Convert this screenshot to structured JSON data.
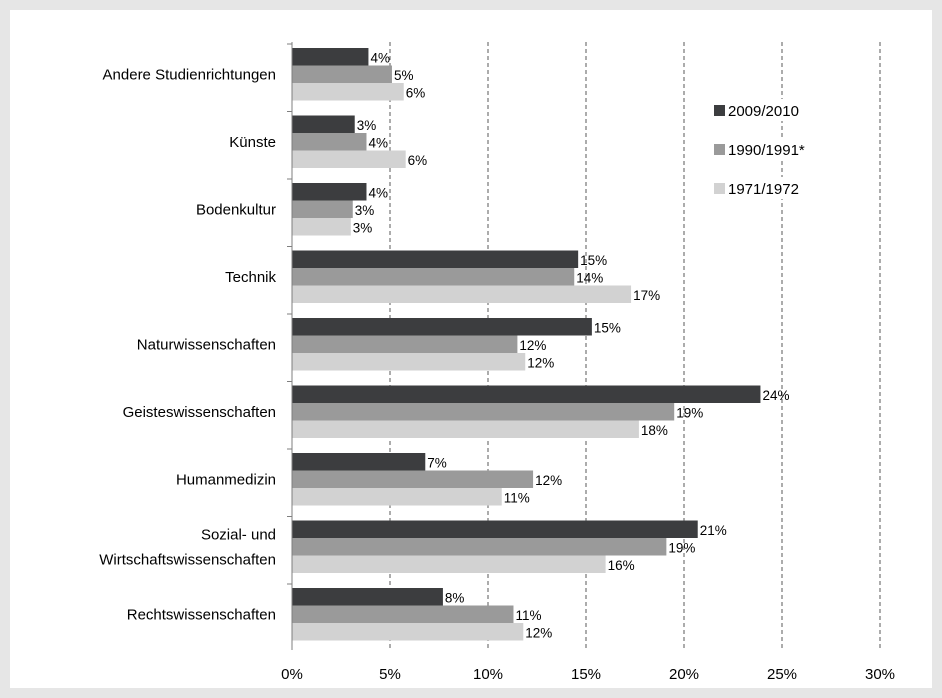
{
  "chart_data": {
    "type": "bar",
    "orientation": "horizontal",
    "categories": [
      "Andere Studienrichtungen",
      "Künste",
      "Bodenkultur",
      "Technik",
      "Naturwissenschaften",
      "Geisteswissenschaften",
      "Humanmedizin",
      "Sozial- und Wirtschaftswissenschaften",
      "Rechtswissenschaften"
    ],
    "category_lines": [
      [
        "Andere Studienrichtungen"
      ],
      [
        "Künste"
      ],
      [
        "Bodenkultur"
      ],
      [
        "Technik"
      ],
      [
        "Naturwissenschaften"
      ],
      [
        "Geisteswissenschaften"
      ],
      [
        "Humanmedizin"
      ],
      [
        "Sozial- und",
        "Wirtschaftswissenschaften"
      ],
      [
        "Rechtswissenschaften"
      ]
    ],
    "series": [
      {
        "name": "2009/2010",
        "color": "#3c3d3f",
        "values": [
          3.9,
          3.2,
          3.8,
          14.6,
          15.3,
          23.9,
          6.8,
          20.7,
          7.7
        ],
        "labels": [
          "4%",
          "3%",
          "4%",
          "15%",
          "15%",
          "24%",
          "7%",
          "21%",
          "8%"
        ]
      },
      {
        "name": "1990/1991*",
        "color": "#9a9a9a",
        "values": [
          5.1,
          3.8,
          3.1,
          14.4,
          11.5,
          19.5,
          12.3,
          19.1,
          11.3
        ],
        "labels": [
          "5%",
          "4%",
          "3%",
          "14%",
          "12%",
          "19%",
          "12%",
          "19%",
          "11%"
        ]
      },
      {
        "name": "1971/1972",
        "color": "#d2d2d2",
        "values": [
          5.7,
          5.8,
          3.0,
          17.3,
          11.9,
          17.7,
          10.7,
          16.0,
          11.8
        ],
        "labels": [
          "6%",
          "6%",
          "3%",
          "17%",
          "12%",
          "18%",
          "11%",
          "16%",
          "12%"
        ]
      }
    ],
    "xlim": [
      0,
      30
    ],
    "xticks": [
      0,
      5,
      10,
      15,
      20,
      25,
      30
    ],
    "xtick_labels": [
      "0%",
      "5%",
      "10%",
      "15%",
      "20%",
      "25%",
      "30%"
    ],
    "grid": "vertical dashed",
    "legend_position": "right",
    "title": "",
    "xlabel": "",
    "ylabel": ""
  }
}
